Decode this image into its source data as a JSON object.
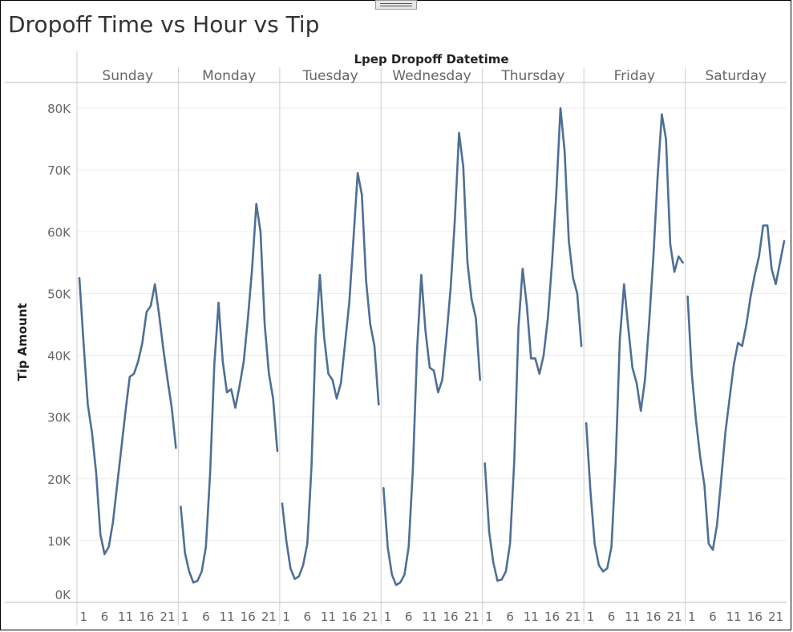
{
  "title": "Dropoff Time vs Hour vs Tip",
  "chart_data": {
    "type": "line",
    "column_header": "Lpep Dropoff Datetime",
    "ylabel": "Tip Amount",
    "ylim": [
      0,
      82000
    ],
    "y_ticks": [
      0,
      10000,
      20000,
      30000,
      40000,
      50000,
      60000,
      70000,
      80000
    ],
    "y_tick_labels": [
      "0K",
      "10K",
      "20K",
      "30K",
      "40K",
      "50K",
      "60K",
      "70K",
      "80K"
    ],
    "x_ticks": [
      1,
      6,
      11,
      16,
      21
    ],
    "x_tick_labels": [
      "1",
      "6",
      "11",
      "16",
      "21"
    ],
    "grid": true,
    "line_color": "#4e6f96",
    "panels": [
      {
        "day": "Sunday",
        "hours": [
          0,
          1,
          2,
          3,
          4,
          5,
          6,
          7,
          8,
          9,
          10,
          11,
          12,
          13,
          14,
          15,
          16,
          17,
          18,
          19,
          20,
          21,
          22,
          23
        ],
        "values": [
          52500,
          42000,
          32000,
          27500,
          21000,
          11000,
          7800,
          9000,
          13000,
          19000,
          25000,
          31000,
          36500,
          37000,
          39000,
          42000,
          47000,
          48000,
          51500,
          46500,
          41000,
          36000,
          31500,
          25000
        ]
      },
      {
        "day": "Monday",
        "hours": [
          0,
          1,
          2,
          3,
          4,
          5,
          6,
          7,
          8,
          9,
          10,
          11,
          12,
          13,
          14,
          15,
          16,
          17,
          18,
          19,
          20,
          21,
          22,
          23
        ],
        "values": [
          15500,
          8000,
          5000,
          3200,
          3500,
          5000,
          9000,
          21000,
          38500,
          48500,
          39000,
          34000,
          34500,
          31500,
          35000,
          39000,
          46000,
          54000,
          64500,
          60000,
          45000,
          37000,
          33000,
          24500
        ]
      },
      {
        "day": "Tuesday",
        "hours": [
          0,
          1,
          2,
          3,
          4,
          5,
          6,
          7,
          8,
          9,
          10,
          11,
          12,
          13,
          14,
          15,
          16,
          17,
          18,
          19,
          20,
          21,
          22,
          23
        ],
        "values": [
          16000,
          10000,
          5500,
          3800,
          4200,
          6000,
          9500,
          22000,
          43000,
          53000,
          43000,
          37000,
          36000,
          33000,
          35500,
          42000,
          48500,
          59000,
          69500,
          66000,
          52000,
          45000,
          41500,
          32000
        ]
      },
      {
        "day": "Wednesday",
        "hours": [
          0,
          1,
          2,
          3,
          4,
          5,
          6,
          7,
          8,
          9,
          10,
          11,
          12,
          13,
          14,
          15,
          16,
          17,
          18,
          19,
          20,
          21,
          22,
          23
        ],
        "values": [
          18500,
          9000,
          4500,
          2800,
          3200,
          4500,
          9000,
          21500,
          41000,
          53000,
          44000,
          38000,
          37500,
          34000,
          36000,
          43000,
          51000,
          62000,
          76000,
          70500,
          55000,
          49000,
          46000,
          36000
        ]
      },
      {
        "day": "Thursday",
        "hours": [
          0,
          1,
          2,
          3,
          4,
          5,
          6,
          7,
          8,
          9,
          10,
          11,
          12,
          13,
          14,
          15,
          16,
          17,
          18,
          19,
          20,
          21,
          22,
          23
        ],
        "values": [
          22500,
          11500,
          6500,
          3500,
          3700,
          5000,
          9500,
          23000,
          44500,
          54000,
          48000,
          39500,
          39500,
          37000,
          40000,
          46000,
          55000,
          66000,
          80000,
          73000,
          58500,
          52500,
          50000,
          41500
        ]
      },
      {
        "day": "Friday",
        "hours": [
          0,
          1,
          2,
          3,
          4,
          5,
          6,
          7,
          8,
          9,
          10,
          11,
          12,
          13,
          14,
          15,
          16,
          17,
          18,
          19,
          20,
          21,
          22,
          23
        ],
        "values": [
          29000,
          18000,
          9500,
          6000,
          5000,
          5500,
          9000,
          22500,
          42500,
          51500,
          44500,
          38000,
          35500,
          31000,
          36000,
          45500,
          56000,
          69000,
          79000,
          75000,
          58000,
          53500,
          56000,
          55000
        ]
      },
      {
        "day": "Saturday",
        "hours": [
          0,
          1,
          2,
          3,
          4,
          5,
          6,
          7,
          8,
          9,
          10,
          11,
          12,
          13,
          14,
          15,
          16,
          17,
          18,
          19,
          20,
          21,
          22,
          23
        ],
        "values": [
          49500,
          37000,
          29500,
          23500,
          19000,
          9500,
          8500,
          12500,
          20000,
          27500,
          33000,
          38500,
          42000,
          41500,
          45000,
          49500,
          53000,
          56000,
          61000,
          61000,
          54000,
          51500,
          55000,
          58500
        ]
      }
    ]
  }
}
